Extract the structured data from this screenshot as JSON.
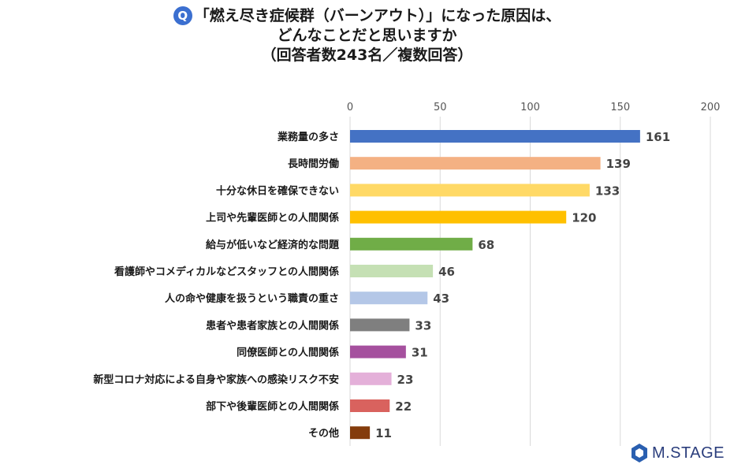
{
  "title": {
    "badge": "Q",
    "line1": "「燃え尽き症候群（バーンアウト）」になった原因は、",
    "line2": "どんなことだと思いますか",
    "line3": "（回答者数243名／複数回答）"
  },
  "logo_text": "M.STAGE",
  "chart_data": {
    "type": "bar",
    "orientation": "horizontal",
    "xlim": [
      0,
      200
    ],
    "ticks": [
      0,
      50,
      100,
      150,
      200
    ],
    "grid": true,
    "categories": [
      "業務量の多さ",
      "長時間労働",
      "十分な休日を確保できない",
      "上司や先輩医師との人間関係",
      "給与が低いなど経済的な問題",
      "看護師やコメディカルなどスタッフとの人間関係",
      "人の命や健康を扱うという職責の重さ",
      "患者や患者家族との人間関係",
      "同僚医師との人間関係",
      "新型コロナ対応による自身や家族への感染リスク不安",
      "部下や後輩医師との人間関係",
      "その他"
    ],
    "values": [
      161,
      139,
      133,
      120,
      68,
      46,
      43,
      33,
      31,
      23,
      22,
      11
    ],
    "colors": [
      "#4472c4",
      "#f4b183",
      "#ffd966",
      "#ffc000",
      "#70ad47",
      "#c5e0b4",
      "#b4c7e7",
      "#7f7f7f",
      "#a5509e",
      "#e4b0d9",
      "#d9625e",
      "#843c0c"
    ]
  }
}
